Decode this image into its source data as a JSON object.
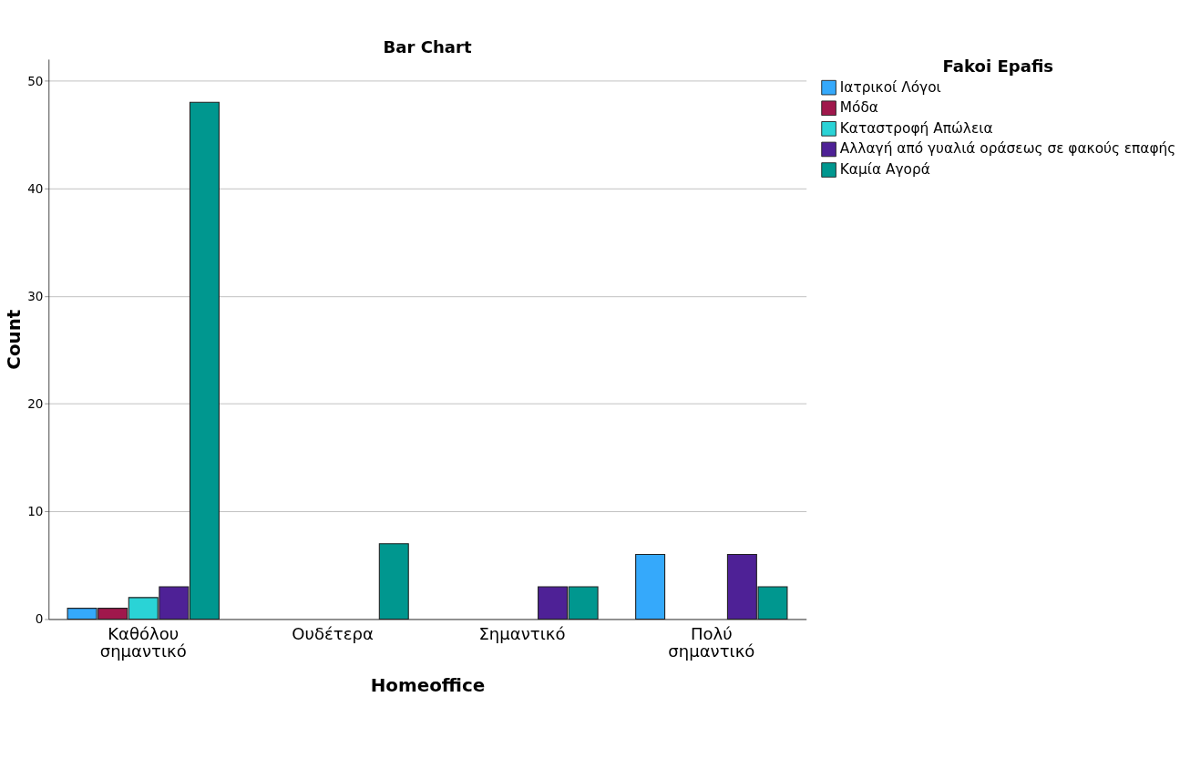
{
  "chart_data": {
    "type": "bar",
    "title": "Bar Chart",
    "xlabel": "Homeoffice",
    "ylabel": "Count",
    "legend_title": "Fakoi Epafis",
    "legend": "top right",
    "grid": "y",
    "categories": [
      "Καθόλου σημαντικό",
      "Ουδέτερα",
      "Σημαντικό",
      "Πολύ σημαντικό"
    ],
    "ylim": [
      0,
      52
    ],
    "yticks": [
      0,
      10,
      20,
      30,
      40,
      50
    ],
    "series": [
      {
        "name": "Ιατρικοί Λόγοι",
        "color": "#35a9fb",
        "values": [
          1,
          null,
          null,
          6
        ]
      },
      {
        "name": "Μόδα",
        "color": "#a0184c",
        "values": [
          1,
          null,
          null,
          null
        ]
      },
      {
        "name": "Καταστροφή Απώλεια",
        "color": "#2ad3d6",
        "values": [
          2,
          null,
          null,
          null
        ]
      },
      {
        "name": "Αλλαγή από γυαλιά οράσεως σε φακούς επαφής",
        "color": "#4e2196",
        "values": [
          3,
          null,
          3,
          6
        ]
      },
      {
        "name": "Καμία Αγορά",
        "color": "#00978f",
        "values": [
          48,
          7,
          3,
          3
        ]
      }
    ]
  }
}
